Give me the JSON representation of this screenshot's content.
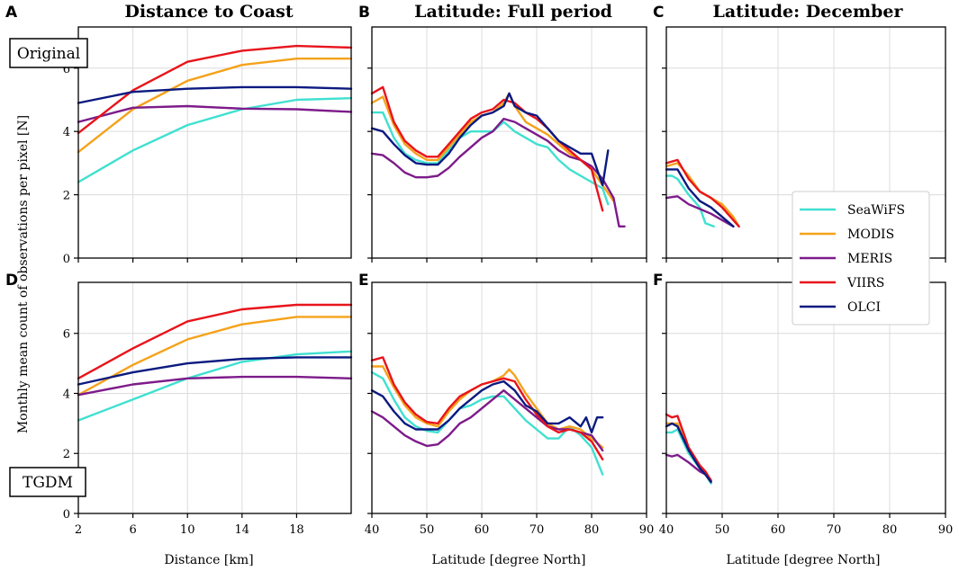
{
  "figure": {
    "ylabel": "Monthly mean count of observations per pixel [N]",
    "row_labels": [
      "Original",
      "TGDM"
    ],
    "colors": {
      "SeaWiFS": "#40e0d0",
      "MODIS": "#f5a21a",
      "MERIS": "#7d1b8a",
      "VIIRS": "#e8141b",
      "OLCI": "#0b1a80"
    },
    "legend": [
      "SeaWiFS",
      "MODIS",
      "MERIS",
      "VIIRS",
      "OLCI"
    ]
  },
  "chart_data": [
    {
      "id": "A",
      "letter": "A",
      "type": "line",
      "title": "Distance to Coast",
      "xlabel": "",
      "xlim": [
        2,
        22
      ],
      "ylim": [
        0,
        7.3
      ],
      "xticks": [
        2,
        6,
        10,
        14,
        18
      ],
      "yticks": [
        0,
        2,
        4,
        6
      ],
      "series": [
        {
          "name": "SeaWiFS",
          "x": [
            2,
            6,
            10,
            14,
            18,
            22
          ],
          "y": [
            2.4,
            3.4,
            4.2,
            4.7,
            5.0,
            5.05
          ]
        },
        {
          "name": "MODIS",
          "x": [
            2,
            6,
            10,
            14,
            18,
            22
          ],
          "y": [
            3.35,
            4.7,
            5.6,
            6.1,
            6.3,
            6.3
          ]
        },
        {
          "name": "MERIS",
          "x": [
            2,
            6,
            10,
            14,
            18,
            22
          ],
          "y": [
            4.3,
            4.75,
            4.8,
            4.72,
            4.7,
            4.62
          ]
        },
        {
          "name": "VIIRS",
          "x": [
            2,
            6,
            10,
            14,
            18,
            22
          ],
          "y": [
            3.95,
            5.3,
            6.2,
            6.55,
            6.7,
            6.65
          ]
        },
        {
          "name": "OLCI",
          "x": [
            2,
            6,
            10,
            14,
            18,
            22
          ],
          "y": [
            4.9,
            5.25,
            5.35,
            5.4,
            5.4,
            5.35
          ]
        }
      ]
    },
    {
      "id": "B",
      "letter": "B",
      "type": "line",
      "title": "Latitude: Full period",
      "xlabel": "",
      "xlim": [
        40,
        90
      ],
      "ylim": [
        0,
        7.3
      ],
      "xticks": [
        40,
        50,
        60,
        70,
        80,
        90
      ],
      "yticks": [
        0,
        2,
        4,
        6
      ],
      "series": [
        {
          "name": "SeaWiFS",
          "x": [
            40,
            42,
            44,
            46,
            48,
            50,
            52,
            54,
            56,
            58,
            60,
            62,
            64,
            66,
            68,
            70,
            72,
            74,
            76,
            78,
            80,
            82,
            83
          ],
          "y": [
            4.6,
            4.6,
            3.8,
            3.3,
            3.1,
            3.0,
            3.0,
            3.4,
            3.8,
            4.0,
            4.0,
            4.0,
            4.3,
            4.0,
            3.8,
            3.6,
            3.5,
            3.1,
            2.8,
            2.6,
            2.4,
            2.2,
            1.7
          ]
        },
        {
          "name": "MODIS",
          "x": [
            40,
            42,
            44,
            46,
            48,
            50,
            52,
            54,
            56,
            58,
            60,
            62,
            64,
            65,
            66,
            68,
            70,
            72,
            74,
            76,
            78,
            80,
            82,
            84
          ],
          "y": [
            4.9,
            5.1,
            4.2,
            3.6,
            3.3,
            3.1,
            3.1,
            3.5,
            3.9,
            4.3,
            4.5,
            4.6,
            4.9,
            5.2,
            4.8,
            4.3,
            4.1,
            3.9,
            3.6,
            3.3,
            3.1,
            2.8,
            2.3,
            1.8
          ]
        },
        {
          "name": "MERIS",
          "x": [
            40,
            42,
            44,
            46,
            48,
            50,
            52,
            54,
            56,
            58,
            60,
            62,
            64,
            66,
            68,
            70,
            72,
            74,
            76,
            78,
            80,
            82,
            84,
            85,
            86
          ],
          "y": [
            3.3,
            3.25,
            3.0,
            2.7,
            2.55,
            2.55,
            2.6,
            2.85,
            3.2,
            3.5,
            3.8,
            4.0,
            4.4,
            4.3,
            4.1,
            3.9,
            3.7,
            3.4,
            3.2,
            3.1,
            2.9,
            2.5,
            1.9,
            1.0,
            1.0
          ]
        },
        {
          "name": "VIIRS",
          "x": [
            40,
            42,
            44,
            46,
            48,
            50,
            52,
            54,
            56,
            58,
            60,
            62,
            64,
            66,
            68,
            70,
            72,
            74,
            76,
            78,
            80,
            82
          ],
          "y": [
            5.2,
            5.4,
            4.3,
            3.7,
            3.4,
            3.2,
            3.2,
            3.6,
            4.0,
            4.4,
            4.6,
            4.7,
            5.0,
            4.9,
            4.6,
            4.4,
            4.1,
            3.7,
            3.4,
            3.1,
            2.8,
            1.5
          ]
        },
        {
          "name": "OLCI",
          "x": [
            40,
            42,
            44,
            46,
            48,
            50,
            52,
            54,
            56,
            58,
            60,
            62,
            64,
            65,
            66,
            68,
            70,
            72,
            74,
            76,
            78,
            80,
            82,
            83
          ],
          "y": [
            4.1,
            4.0,
            3.6,
            3.25,
            3.0,
            2.95,
            2.95,
            3.3,
            3.8,
            4.2,
            4.5,
            4.6,
            4.8,
            5.2,
            4.8,
            4.6,
            4.5,
            4.1,
            3.7,
            3.5,
            3.3,
            3.3,
            2.3,
            3.4
          ]
        }
      ]
    },
    {
      "id": "C",
      "letter": "C",
      "type": "line",
      "title": "Latitude: December",
      "xlabel": "",
      "xlim": [
        40,
        90
      ],
      "ylim": [
        0,
        7.3
      ],
      "xticks": [
        40,
        50,
        60,
        70,
        80,
        90
      ],
      "yticks": [
        0,
        2,
        4,
        6
      ],
      "series": [
        {
          "name": "SeaWiFS",
          "x": [
            40,
            41,
            42,
            44,
            46,
            47,
            48.5
          ],
          "y": [
            2.6,
            2.6,
            2.5,
            2.0,
            1.6,
            1.1,
            1.0
          ]
        },
        {
          "name": "MODIS",
          "x": [
            40,
            42,
            44,
            46,
            48,
            50,
            52,
            53
          ],
          "y": [
            2.9,
            3.0,
            2.6,
            2.1,
            1.9,
            1.7,
            1.3,
            1.0
          ]
        },
        {
          "name": "MERIS",
          "x": [
            40,
            42,
            44,
            46,
            48,
            50,
            52
          ],
          "y": [
            1.9,
            1.95,
            1.7,
            1.55,
            1.4,
            1.2,
            1.0
          ]
        },
        {
          "name": "VIIRS",
          "x": [
            40,
            42,
            44,
            46,
            48,
            50,
            52,
            53
          ],
          "y": [
            3.0,
            3.1,
            2.5,
            2.1,
            1.9,
            1.6,
            1.2,
            1.0
          ]
        },
        {
          "name": "OLCI",
          "x": [
            40,
            42,
            44,
            46,
            48,
            50,
            52
          ],
          "y": [
            2.8,
            2.8,
            2.2,
            1.8,
            1.6,
            1.3,
            1.0
          ]
        }
      ]
    },
    {
      "id": "D",
      "letter": "D",
      "type": "line",
      "title": "",
      "xlabel": "Distance [km]",
      "xlim": [
        2,
        22
      ],
      "ylim": [
        0,
        7.7
      ],
      "xticks": [
        2,
        6,
        10,
        14,
        18
      ],
      "yticks": [
        0,
        2,
        4,
        6
      ],
      "series": [
        {
          "name": "SeaWiFS",
          "x": [
            2,
            6,
            10,
            14,
            18,
            22
          ],
          "y": [
            3.1,
            3.8,
            4.5,
            5.05,
            5.3,
            5.4
          ]
        },
        {
          "name": "MODIS",
          "x": [
            2,
            6,
            10,
            14,
            18,
            22
          ],
          "y": [
            3.95,
            4.95,
            5.8,
            6.3,
            6.55,
            6.55
          ]
        },
        {
          "name": "MERIS",
          "x": [
            2,
            6,
            10,
            14,
            18,
            22
          ],
          "y": [
            3.95,
            4.3,
            4.5,
            4.55,
            4.55,
            4.5
          ]
        },
        {
          "name": "VIIRS",
          "x": [
            2,
            6,
            10,
            14,
            18,
            22
          ],
          "y": [
            4.5,
            5.5,
            6.4,
            6.8,
            6.95,
            6.95
          ]
        },
        {
          "name": "OLCI",
          "x": [
            2,
            6,
            10,
            14,
            18,
            22
          ],
          "y": [
            4.3,
            4.7,
            5.0,
            5.15,
            5.2,
            5.2
          ]
        }
      ]
    },
    {
      "id": "E",
      "letter": "E",
      "type": "line",
      "title": "",
      "xlabel": "Latitude [degree North]",
      "xlim": [
        40,
        90
      ],
      "ylim": [
        0,
        7.7
      ],
      "xticks": [
        40,
        50,
        60,
        70,
        80,
        90
      ],
      "yticks": [
        0,
        2,
        4,
        6
      ],
      "series": [
        {
          "name": "SeaWiFS",
          "x": [
            40,
            42,
            44,
            46,
            48,
            50,
            52,
            54,
            56,
            58,
            60,
            62,
            64,
            66,
            68,
            70,
            72,
            74,
            76,
            78,
            80,
            82
          ],
          "y": [
            4.7,
            4.5,
            3.8,
            3.2,
            2.9,
            2.75,
            2.7,
            3.1,
            3.5,
            3.6,
            3.8,
            3.9,
            3.9,
            3.5,
            3.1,
            2.8,
            2.5,
            2.5,
            2.9,
            2.6,
            2.2,
            1.3
          ]
        },
        {
          "name": "MODIS",
          "x": [
            40,
            42,
            44,
            46,
            48,
            50,
            52,
            54,
            56,
            58,
            60,
            62,
            64,
            65,
            66,
            68,
            70,
            72,
            74,
            76,
            78,
            80,
            82
          ],
          "y": [
            4.9,
            4.9,
            4.2,
            3.6,
            3.2,
            3.0,
            2.9,
            3.4,
            3.8,
            4.1,
            4.3,
            4.4,
            4.6,
            4.8,
            4.6,
            4.0,
            3.5,
            3.0,
            2.8,
            2.9,
            2.8,
            2.5,
            2.2
          ]
        },
        {
          "name": "MERIS",
          "x": [
            40,
            42,
            44,
            46,
            48,
            50,
            52,
            54,
            56,
            58,
            60,
            62,
            64,
            66,
            68,
            70,
            72,
            74,
            76,
            78,
            80,
            82
          ],
          "y": [
            3.4,
            3.2,
            2.9,
            2.6,
            2.4,
            2.25,
            2.3,
            2.6,
            3.0,
            3.2,
            3.5,
            3.8,
            4.1,
            3.8,
            3.5,
            3.2,
            2.9,
            2.8,
            2.8,
            2.7,
            2.6,
            2.1
          ]
        },
        {
          "name": "VIIRS",
          "x": [
            40,
            42,
            44,
            46,
            48,
            50,
            52,
            54,
            56,
            58,
            60,
            62,
            64,
            66,
            68,
            70,
            72,
            74,
            76,
            78,
            80,
            82
          ],
          "y": [
            5.1,
            5.2,
            4.3,
            3.7,
            3.3,
            3.05,
            3.0,
            3.5,
            3.9,
            4.1,
            4.3,
            4.4,
            4.5,
            4.4,
            3.8,
            3.3,
            2.9,
            2.7,
            2.8,
            2.7,
            2.4,
            1.8
          ]
        },
        {
          "name": "OLCI",
          "x": [
            40,
            42,
            44,
            46,
            48,
            50,
            52,
            54,
            56,
            58,
            60,
            62,
            64,
            66,
            68,
            70,
            72,
            74,
            76,
            78,
            79,
            80,
            81,
            82
          ],
          "y": [
            4.1,
            3.9,
            3.4,
            3.0,
            2.8,
            2.8,
            2.8,
            3.1,
            3.5,
            3.8,
            4.1,
            4.3,
            4.4,
            4.1,
            3.6,
            3.4,
            3.0,
            3.0,
            3.2,
            2.9,
            3.2,
            2.7,
            3.2,
            3.2
          ]
        }
      ]
    },
    {
      "id": "F",
      "letter": "F",
      "type": "line",
      "title": "",
      "xlabel": "Latitude [degree North]",
      "xlim": [
        40,
        90
      ],
      "ylim": [
        0,
        7.7
      ],
      "xticks": [
        40,
        50,
        60,
        70,
        80,
        90
      ],
      "yticks": [
        0,
        2,
        4,
        6
      ],
      "series": [
        {
          "name": "SeaWiFS",
          "x": [
            40,
            41,
            42,
            44,
            46,
            47,
            48
          ],
          "y": [
            2.7,
            2.7,
            2.8,
            2.0,
            1.5,
            1.3,
            1.0
          ]
        },
        {
          "name": "MODIS",
          "x": [
            40,
            41,
            42,
            44,
            46,
            47,
            48
          ],
          "y": [
            3.0,
            3.0,
            3.0,
            2.1,
            1.6,
            1.3,
            1.05
          ]
        },
        {
          "name": "MERIS",
          "x": [
            40,
            41,
            42,
            44,
            46,
            47,
            48
          ],
          "y": [
            1.95,
            1.9,
            1.95,
            1.7,
            1.4,
            1.3,
            1.1
          ]
        },
        {
          "name": "VIIRS",
          "x": [
            40,
            41,
            42,
            44,
            46,
            47,
            48
          ],
          "y": [
            3.3,
            3.2,
            3.25,
            2.2,
            1.6,
            1.4,
            1.1
          ]
        },
        {
          "name": "OLCI",
          "x": [
            40,
            41,
            42,
            44,
            46,
            47,
            48
          ],
          "y": [
            2.9,
            3.0,
            2.9,
            2.1,
            1.5,
            1.3,
            1.05
          ]
        }
      ]
    }
  ]
}
